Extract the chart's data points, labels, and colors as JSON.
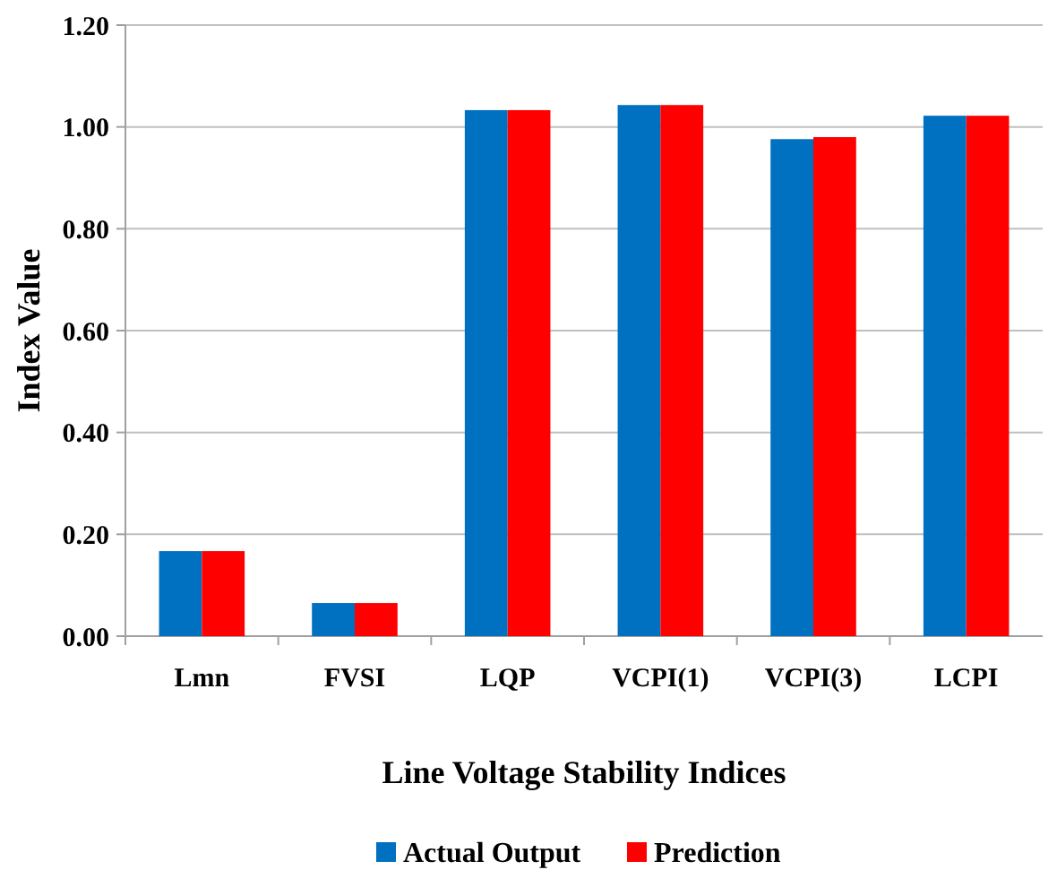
{
  "chart_data": {
    "type": "bar",
    "xlabel": "Line Voltage Stability Indices",
    "ylabel": "Index Value",
    "categories": [
      "Lmn",
      "FVSI",
      "LQP",
      "VCPI(1)",
      "VCPI(3)",
      "LCPI"
    ],
    "series": [
      {
        "name": "Actual Output",
        "color": "#0070c0",
        "values": [
          0.167,
          0.065,
          1.033,
          1.043,
          0.976,
          1.022
        ]
      },
      {
        "name": "Prediction",
        "color": "#ff0000",
        "values": [
          0.167,
          0.065,
          1.033,
          1.043,
          0.98,
          1.022
        ]
      }
    ],
    "ylim": [
      0,
      1.2
    ],
    "yticks": [
      {
        "value": 0,
        "label": "0.00"
      },
      {
        "value": 0.2,
        "label": "0.20"
      },
      {
        "value": 0.4,
        "label": "0.40"
      },
      {
        "value": 0.6,
        "label": "0.60"
      },
      {
        "value": 0.8,
        "label": "0.80"
      },
      {
        "value": 1,
        "label": "1.00"
      },
      {
        "value": 1.2,
        "label": "1.20"
      }
    ],
    "grid": "y",
    "legend": "bottom"
  }
}
